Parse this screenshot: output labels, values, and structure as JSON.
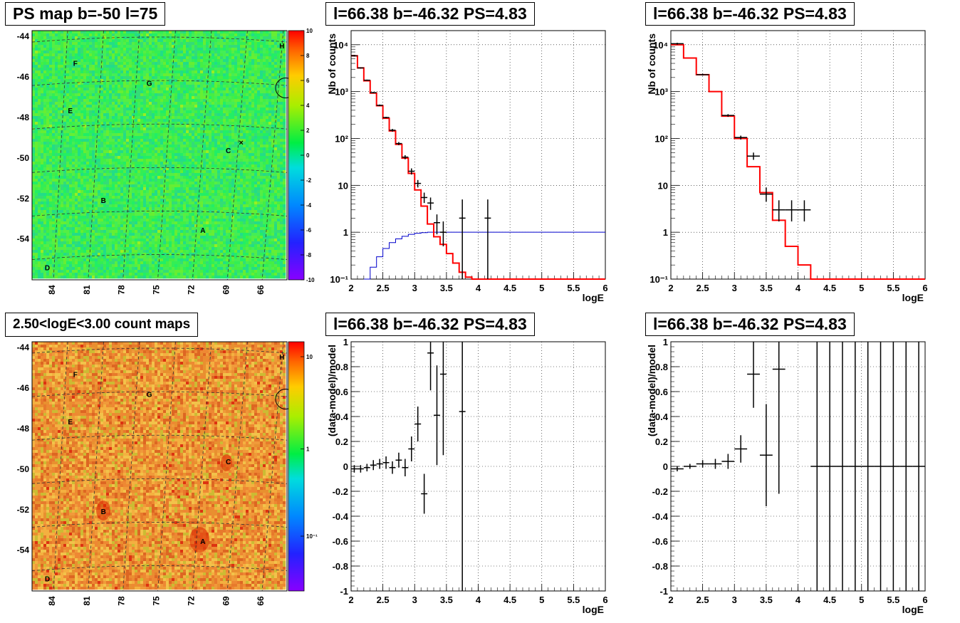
{
  "titles": {
    "map_top": "PS map b=-50 l=75",
    "map_bottom": "2.50<logE<3.00 count maps",
    "spec_left": "l=66.38 b=-46.32 PS=4.83",
    "spec_right": "l=66.38 b=-46.32 PS=4.83",
    "resid_left": "l=66.38 b=-46.32 PS=4.83",
    "resid_right": "l=66.38 b=-46.32 PS=4.83"
  },
  "colors": {
    "map_top_bg": "#33ee55",
    "map_bottom_bg": "#ee9933",
    "model_line": "#ff0000",
    "background_line": "#0000cc",
    "data": "#000000"
  },
  "chart_data": [
    {
      "type": "heatmap",
      "id": "ps_map",
      "title": "PS map b=-50 l=75",
      "x_ticks": [
        "84",
        "81",
        "78",
        "75",
        "72",
        "69",
        "66"
      ],
      "y_ticks": [
        "-44",
        "-46",
        "-48",
        "-50",
        "-52",
        "-54"
      ],
      "colorbar_ticks": [
        "10",
        "8",
        "6",
        "4",
        "2",
        "0",
        "-2",
        "-4",
        "-6",
        "-8",
        "-10"
      ],
      "colorbar_range": [
        -10,
        10
      ],
      "sources": [
        "A",
        "B",
        "C",
        "D",
        "E",
        "F",
        "G",
        "H"
      ]
    },
    {
      "type": "heatmap",
      "id": "count_map",
      "title": "2.50<logE<3.00 count maps",
      "x_ticks": [
        "84",
        "81",
        "78",
        "75",
        "72",
        "69",
        "66"
      ],
      "y_ticks": [
        "-44",
        "-46",
        "-48",
        "-50",
        "-52",
        "-54"
      ],
      "colorbar_ticks": [
        "10",
        "1",
        "10⁻¹"
      ],
      "colorbar_scale": "log",
      "sources": [
        "A",
        "B",
        "C",
        "D",
        "E",
        "F",
        "G",
        "H"
      ]
    },
    {
      "type": "line",
      "id": "spec_left",
      "title": "l=66.38 b=-46.32 PS=4.83",
      "xlabel": "logE",
      "ylabel": "Nb of counts",
      "xlim": [
        2,
        6
      ],
      "ylim": [
        0.1,
        20000
      ],
      "yscale": "log",
      "x_ticks": [
        "2",
        "2.5",
        "3",
        "3.5",
        "4",
        "4.5",
        "5",
        "5.5",
        "6"
      ],
      "y_ticks": [
        "10⁻¹",
        "1",
        "10",
        "10²",
        "10³",
        "10⁴"
      ],
      "grid": true,
      "model_step": {
        "edges": [
          2.0,
          2.1,
          2.2,
          2.3,
          2.4,
          2.5,
          2.6,
          2.7,
          2.8,
          2.9,
          3.0,
          3.1,
          3.2,
          3.3,
          3.4,
          3.5,
          3.6,
          3.7,
          3.8,
          3.9,
          4.0,
          4.1,
          6.0
        ],
        "values": [
          5800,
          3200,
          1700,
          930,
          500,
          270,
          145,
          75,
          38,
          18,
          8,
          3.6,
          1.5,
          0.8,
          0.55,
          0.35,
          0.22,
          0.14,
          0.11,
          0.1,
          0.1,
          0.1
        ]
      },
      "background_step": {
        "edges": [
          2.2,
          2.3,
          2.4,
          2.5,
          2.6,
          2.7,
          2.8,
          2.9,
          3.0,
          3.1,
          3.2,
          3.3,
          6.0
        ],
        "values": [
          0.1,
          0.18,
          0.3,
          0.45,
          0.6,
          0.72,
          0.82,
          0.9,
          0.95,
          0.98,
          1.0,
          1.0
        ]
      },
      "data": [
        {
          "x": 2.05,
          "y": 5800,
          "lo": 5600,
          "hi": 6000
        },
        {
          "x": 2.15,
          "y": 3200,
          "lo": 3100,
          "hi": 3300
        },
        {
          "x": 2.25,
          "y": 1750,
          "lo": 1700,
          "hi": 1800
        },
        {
          "x": 2.35,
          "y": 950,
          "lo": 920,
          "hi": 980
        },
        {
          "x": 2.45,
          "y": 510,
          "lo": 490,
          "hi": 530
        },
        {
          "x": 2.55,
          "y": 280,
          "lo": 270,
          "hi": 290
        },
        {
          "x": 2.65,
          "y": 150,
          "lo": 140,
          "hi": 160
        },
        {
          "x": 2.75,
          "y": 78,
          "lo": 72,
          "hi": 84
        },
        {
          "x": 2.85,
          "y": 40,
          "lo": 36,
          "hi": 44
        },
        {
          "x": 2.95,
          "y": 20,
          "lo": 17,
          "hi": 23
        },
        {
          "x": 3.05,
          "y": 11,
          "lo": 9,
          "hi": 13
        },
        {
          "x": 3.15,
          "y": 5.5,
          "lo": 4.2,
          "hi": 7
        },
        {
          "x": 3.25,
          "y": 4.2,
          "lo": 3,
          "hi": 5.5
        },
        {
          "x": 3.35,
          "y": 1.6,
          "lo": 0.9,
          "hi": 2.4
        },
        {
          "x": 3.45,
          "y": 1.0,
          "lo": 0.5,
          "hi": 1.7
        },
        {
          "x": 3.75,
          "y": 2,
          "lo": 0.1,
          "hi": 5
        },
        {
          "x": 4.15,
          "y": 2,
          "lo": 0.1,
          "hi": 5
        }
      ]
    },
    {
      "type": "line",
      "id": "spec_right",
      "title": "l=66.38 b=-46.32 PS=4.83",
      "xlabel": "logE",
      "ylabel": "Nb of counts",
      "xlim": [
        2,
        6
      ],
      "ylim": [
        0.1,
        20000
      ],
      "yscale": "log",
      "x_ticks": [
        "2",
        "2.5",
        "3",
        "3.5",
        "4",
        "4.5",
        "5",
        "5.5",
        "6"
      ],
      "y_ticks": [
        "10⁻¹",
        "1",
        "10",
        "10²",
        "10³",
        "10⁴"
      ],
      "grid": true,
      "model_step": {
        "edges": [
          2.0,
          2.2,
          2.4,
          2.6,
          2.8,
          3.0,
          3.2,
          3.4,
          3.6,
          3.8,
          4.0,
          4.2,
          6.0
        ],
        "values": [
          10000,
          5200,
          2300,
          1000,
          300,
          100,
          25,
          7,
          1.8,
          0.5,
          0.2,
          0.1
        ]
      },
      "data": [
        {
          "x": 2.1,
          "y": 10500,
          "lo": 10000,
          "hi": 11000
        },
        {
          "x": 2.5,
          "y": 2300,
          "lo": 2200,
          "hi": 2400
        },
        {
          "x": 2.9,
          "y": 310,
          "lo": 290,
          "hi": 330
        },
        {
          "x": 3.1,
          "y": 105,
          "lo": 95,
          "hi": 115
        },
        {
          "x": 3.3,
          "y": 42,
          "lo": 35,
          "hi": 50
        },
        {
          "x": 3.5,
          "y": 6.5,
          "lo": 4.5,
          "hi": 9
        },
        {
          "x": 3.7,
          "y": 3,
          "lo": 1.7,
          "hi": 4.8
        },
        {
          "x": 3.9,
          "y": 3,
          "lo": 1.7,
          "hi": 4.8
        },
        {
          "x": 4.1,
          "y": 3,
          "lo": 1.7,
          "hi": 4.8
        }
      ]
    },
    {
      "type": "scatter",
      "id": "resid_left",
      "title": "l=66.38 b=-46.32 PS=4.83",
      "xlabel": "logE",
      "ylabel": "(data-model)/model",
      "xlim": [
        2,
        6
      ],
      "ylim": [
        -1,
        1
      ],
      "x_ticks": [
        "2",
        "2.5",
        "3",
        "3.5",
        "4",
        "4.5",
        "5",
        "5.5",
        "6"
      ],
      "y_ticks": [
        "-1",
        "-0.8",
        "-0.6",
        "-0.4",
        "-0.2",
        "0",
        "0.2",
        "0.4",
        "0.6",
        "0.8",
        "1"
      ],
      "grid": true,
      "data": [
        {
          "x": 2.05,
          "y": -0.02,
          "err": 0.03
        },
        {
          "x": 2.15,
          "y": -0.02,
          "err": 0.03
        },
        {
          "x": 2.25,
          "y": -0.01,
          "err": 0.03
        },
        {
          "x": 2.35,
          "y": 0.01,
          "err": 0.04
        },
        {
          "x": 2.45,
          "y": 0.02,
          "err": 0.04
        },
        {
          "x": 2.55,
          "y": 0.03,
          "err": 0.05
        },
        {
          "x": 2.65,
          "y": -0.01,
          "err": 0.05
        },
        {
          "x": 2.75,
          "y": 0.05,
          "err": 0.06
        },
        {
          "x": 2.85,
          "y": -0.01,
          "err": 0.07
        },
        {
          "x": 2.95,
          "y": 0.14,
          "err": 0.1
        },
        {
          "x": 3.05,
          "y": 0.34,
          "err": 0.14
        },
        {
          "x": 3.15,
          "y": -0.22,
          "err": 0.16
        },
        {
          "x": 3.25,
          "y": 0.91,
          "err": 0.3
        },
        {
          "x": 3.35,
          "y": 0.41,
          "err": 0.4
        },
        {
          "x": 3.45,
          "y": 0.74,
          "err": 0.65
        },
        {
          "x": 3.75,
          "y": 0.44,
          "err": 1.6
        }
      ]
    },
    {
      "type": "scatter",
      "id": "resid_right",
      "title": "l=66.38 b=-46.32 PS=4.83",
      "xlabel": "logE",
      "ylabel": "(data-model)/model",
      "xlim": [
        2,
        6
      ],
      "ylim": [
        -1,
        1
      ],
      "x_ticks": [
        "2",
        "2.5",
        "3",
        "3.5",
        "4",
        "4.5",
        "5",
        "5.5",
        "6"
      ],
      "y_ticks": [
        "-1",
        "-0.8",
        "-0.6",
        "-0.4",
        "-0.2",
        "0",
        "0.2",
        "0.4",
        "0.6",
        "0.8",
        "1"
      ],
      "grid": true,
      "data": [
        {
          "x": 2.1,
          "y": -0.02,
          "err": 0.02
        },
        {
          "x": 2.3,
          "y": 0.0,
          "err": 0.02
        },
        {
          "x": 2.5,
          "y": 0.02,
          "err": 0.03
        },
        {
          "x": 2.7,
          "y": 0.02,
          "err": 0.04
        },
        {
          "x": 2.9,
          "y": 0.04,
          "err": 0.06
        },
        {
          "x": 3.1,
          "y": 0.14,
          "err": 0.11
        },
        {
          "x": 3.3,
          "y": 0.74,
          "err": 0.27
        },
        {
          "x": 3.5,
          "y": 0.09,
          "err": 0.41
        },
        {
          "x": 3.7,
          "y": 0.78,
          "err": 1.0
        },
        {
          "x": 4.3,
          "y": 0,
          "err": 5
        },
        {
          "x": 4.5,
          "y": 0,
          "err": 5
        },
        {
          "x": 4.7,
          "y": 0,
          "err": 5
        },
        {
          "x": 4.9,
          "y": 0,
          "err": 5
        },
        {
          "x": 5.1,
          "y": 0,
          "err": 5
        },
        {
          "x": 5.3,
          "y": 0,
          "err": 5
        },
        {
          "x": 5.5,
          "y": 0,
          "err": 5
        },
        {
          "x": 5.7,
          "y": 0,
          "err": 5
        },
        {
          "x": 5.9,
          "y": 0,
          "err": 5
        }
      ]
    }
  ]
}
